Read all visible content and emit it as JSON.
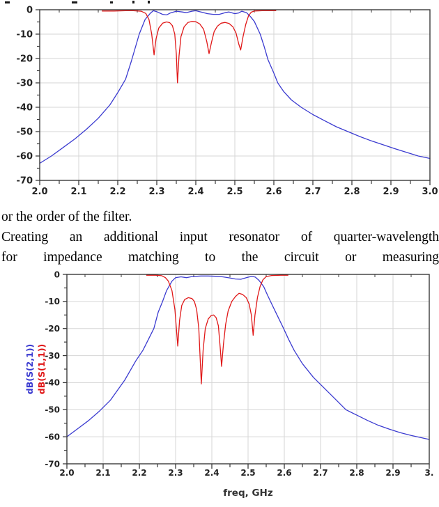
{
  "page": {
    "text_lines": [
      "or the order of the filter.",
      "Creating an additional input resonator of quarter-wavelength",
      "for impedance matching to the circuit or measuring"
    ]
  },
  "style": {
    "grid_color": "#d6d6d6",
    "border_color": "#3a3a3a",
    "tick_label_color": "#222222",
    "axis_title_color": "#333333",
    "s21_color": "#3b3bd0",
    "s11_color": "#e01818"
  },
  "chart_data": [
    {
      "type": "line",
      "title": "",
      "xlabel": "",
      "ylabel": "",
      "x_range": [
        2.0,
        3.0
      ],
      "y_range": [
        -70,
        0
      ],
      "x_major_step": 0.1,
      "grid": true,
      "legend_position": "none",
      "x_tick_labels": [
        "2.0",
        "2.1",
        "2.2",
        "2.3",
        "2.4",
        "2.5",
        "2.6",
        "2.7",
        "2.8",
        "2.9",
        "3.0"
      ],
      "y_tick_labels": [
        "0",
        "-10",
        "-20",
        "-30",
        "-40",
        "-50",
        "-60",
        "-70"
      ],
      "series": [
        {
          "name": "dB(S(2,1))",
          "color": "#3b3bd0",
          "points": [
            [
              2.0,
              -63
            ],
            [
              2.03,
              -60
            ],
            [
              2.06,
              -56.5
            ],
            [
              2.09,
              -53
            ],
            [
              2.12,
              -49
            ],
            [
              2.15,
              -44.5
            ],
            [
              2.18,
              -39
            ],
            [
              2.2,
              -34
            ],
            [
              2.22,
              -28.5
            ],
            [
              2.235,
              -21
            ],
            [
              2.255,
              -10
            ],
            [
              2.27,
              -4
            ],
            [
              2.283,
              -1.5
            ],
            [
              2.291,
              -0.4
            ],
            [
              2.3,
              -0.8
            ],
            [
              2.315,
              -1.9
            ],
            [
              2.325,
              -2.1
            ],
            [
              2.335,
              -1.3
            ],
            [
              2.35,
              -0.6
            ],
            [
              2.365,
              -0.9
            ],
            [
              2.375,
              -1.2
            ],
            [
              2.39,
              -0.6
            ],
            [
              2.4,
              -0.4
            ],
            [
              2.415,
              -1.0
            ],
            [
              2.43,
              -1.6
            ],
            [
              2.445,
              -1.9
            ],
            [
              2.46,
              -1.9
            ],
            [
              2.475,
              -1.2
            ],
            [
              2.485,
              -0.9
            ],
            [
              2.5,
              -1.6
            ],
            [
              2.51,
              -1.3
            ],
            [
              2.518,
              -0.6
            ],
            [
              2.53,
              -1.2
            ],
            [
              2.54,
              -2.8
            ],
            [
              2.55,
              -4.8
            ],
            [
              2.565,
              -10
            ],
            [
              2.575,
              -15
            ],
            [
              2.585,
              -20.5
            ],
            [
              2.6,
              -26
            ],
            [
              2.61,
              -30
            ],
            [
              2.625,
              -33.5
            ],
            [
              2.645,
              -37
            ],
            [
              2.67,
              -40
            ],
            [
              2.7,
              -43
            ],
            [
              2.73,
              -45.5
            ],
            [
              2.76,
              -48
            ],
            [
              2.79,
              -50
            ],
            [
              2.82,
              -52
            ],
            [
              2.85,
              -53.8
            ],
            [
              2.88,
              -55.4
            ],
            [
              2.91,
              -57
            ],
            [
              2.94,
              -58.5
            ],
            [
              2.97,
              -60
            ],
            [
              3.0,
              -61
            ]
          ]
        },
        {
          "name": "dB(S(1,1))",
          "color": "#e01818",
          "points": [
            [
              2.16,
              -0.5
            ],
            [
              2.19,
              -0.5
            ],
            [
              2.22,
              -0.4
            ],
            [
              2.24,
              -0.4
            ],
            [
              2.26,
              -0.6
            ],
            [
              2.272,
              -1.5
            ],
            [
              2.28,
              -4
            ],
            [
              2.287,
              -10
            ],
            [
              2.293,
              -18.5
            ],
            [
              2.298,
              -12
            ],
            [
              2.305,
              -7.5
            ],
            [
              2.315,
              -5.5
            ],
            [
              2.325,
              -5
            ],
            [
              2.333,
              -5.3
            ],
            [
              2.34,
              -6.5
            ],
            [
              2.346,
              -10
            ],
            [
              2.35,
              -18
            ],
            [
              2.353,
              -30
            ],
            [
              2.357,
              -19
            ],
            [
              2.362,
              -11
            ],
            [
              2.37,
              -7
            ],
            [
              2.38,
              -5.2
            ],
            [
              2.39,
              -4.8
            ],
            [
              2.4,
              -4.9
            ],
            [
              2.41,
              -5.8
            ],
            [
              2.42,
              -8
            ],
            [
              2.428,
              -13
            ],
            [
              2.434,
              -18
            ],
            [
              2.44,
              -13.5
            ],
            [
              2.447,
              -9
            ],
            [
              2.455,
              -6.8
            ],
            [
              2.465,
              -5.5
            ],
            [
              2.475,
              -5.2
            ],
            [
              2.485,
              -5.6
            ],
            [
              2.495,
              -7
            ],
            [
              2.503,
              -9.5
            ],
            [
              2.51,
              -14
            ],
            [
              2.515,
              -16.5
            ],
            [
              2.521,
              -11
            ],
            [
              2.528,
              -6
            ],
            [
              2.535,
              -2.5
            ],
            [
              2.542,
              -1
            ],
            [
              2.55,
              -0.5
            ],
            [
              2.57,
              -0.4
            ],
            [
              2.59,
              -0.4
            ],
            [
              2.605,
              -0.4
            ]
          ]
        }
      ]
    },
    {
      "type": "line",
      "title": "",
      "xlabel": "freq, GHz",
      "ylabel_rotated": [
        "dB(S(2,1))",
        "dB(S(1,1))"
      ],
      "x_range": [
        2.0,
        3.0
      ],
      "y_range": [
        -70,
        0
      ],
      "x_major_step": 0.1,
      "grid": true,
      "legend_position": "left-rotated",
      "x_tick_labels": [
        "2.0",
        "2.1",
        "2.2",
        "2.3",
        "2.4",
        "2.5",
        "2.6",
        "2.7",
        "2.8",
        "2.9",
        "3."
      ],
      "y_tick_labels": [
        "0",
        "-10",
        "-20",
        "-30",
        "-40",
        "-50",
        "-60",
        "-70"
      ],
      "series": [
        {
          "name": "dB(S(2,1))",
          "color": "#3b3bd0",
          "points": [
            [
              2.0,
              -60
            ],
            [
              2.03,
              -57
            ],
            [
              2.06,
              -54
            ],
            [
              2.09,
              -50.5
            ],
            [
              2.12,
              -46.5
            ],
            [
              2.16,
              -39
            ],
            [
              2.19,
              -32
            ],
            [
              2.21,
              -28
            ],
            [
              2.225,
              -24
            ],
            [
              2.24,
              -20
            ],
            [
              2.252,
              -14
            ],
            [
              2.264,
              -10
            ],
            [
              2.275,
              -6
            ],
            [
              2.29,
              -2.5
            ],
            [
              2.3,
              -1.2
            ],
            [
              2.315,
              -0.9
            ],
            [
              2.33,
              -1.2
            ],
            [
              2.345,
              -0.8
            ],
            [
              2.37,
              -0.6
            ],
            [
              2.39,
              -0.6
            ],
            [
              2.41,
              -0.7
            ],
            [
              2.43,
              -0.9
            ],
            [
              2.45,
              -1.3
            ],
            [
              2.465,
              -1.7
            ],
            [
              2.48,
              -1.8
            ],
            [
              2.495,
              -1.2
            ],
            [
              2.51,
              -0.7
            ],
            [
              2.52,
              -1.0
            ],
            [
              2.53,
              -2.2
            ],
            [
              2.543,
              -4.5
            ],
            [
              2.553,
              -7.5
            ],
            [
              2.562,
              -10
            ],
            [
              2.58,
              -15
            ],
            [
              2.598,
              -20
            ],
            [
              2.612,
              -24
            ],
            [
              2.627,
              -28
            ],
            [
              2.65,
              -33
            ],
            [
              2.68,
              -38
            ],
            [
              2.71,
              -42
            ],
            [
              2.74,
              -46
            ],
            [
              2.77,
              -50
            ],
            [
              2.8,
              -52
            ],
            [
              2.83,
              -54
            ],
            [
              2.86,
              -55.8
            ],
            [
              2.89,
              -57.2
            ],
            [
              2.92,
              -58.5
            ],
            [
              2.95,
              -59.5
            ],
            [
              3.0,
              -61
            ]
          ]
        },
        {
          "name": "dB(S(1,1))",
          "color": "#e01818",
          "points": [
            [
              2.22,
              -0.3
            ],
            [
              2.245,
              -0.3
            ],
            [
              2.262,
              -0.5
            ],
            [
              2.272,
              -1.2
            ],
            [
              2.28,
              -2.5
            ],
            [
              2.29,
              -6
            ],
            [
              2.298,
              -13
            ],
            [
              2.306,
              -26.5
            ],
            [
              2.311,
              -17
            ],
            [
              2.317,
              -11.5
            ],
            [
              2.325,
              -9.3
            ],
            [
              2.335,
              -8.6
            ],
            [
              2.345,
              -8.9
            ],
            [
              2.352,
              -10
            ],
            [
              2.358,
              -13
            ],
            [
              2.364,
              -20
            ],
            [
              2.371,
              -40.5
            ],
            [
              2.376,
              -28
            ],
            [
              2.382,
              -20
            ],
            [
              2.39,
              -16.5
            ],
            [
              2.398,
              -15.2
            ],
            [
              2.405,
              -15
            ],
            [
              2.412,
              -16
            ],
            [
              2.418,
              -19
            ],
            [
              2.423,
              -27
            ],
            [
              2.427,
              -34
            ],
            [
              2.432,
              -26
            ],
            [
              2.438,
              -18.5
            ],
            [
              2.445,
              -13.5
            ],
            [
              2.455,
              -10
            ],
            [
              2.465,
              -8.2
            ],
            [
              2.475,
              -7.0
            ],
            [
              2.485,
              -7.4
            ],
            [
              2.495,
              -8.6
            ],
            [
              2.503,
              -11
            ],
            [
              2.509,
              -15
            ],
            [
              2.514,
              -22.5
            ],
            [
              2.519,
              -15
            ],
            [
              2.526,
              -8.5
            ],
            [
              2.533,
              -4.5
            ],
            [
              2.541,
              -2
            ],
            [
              2.55,
              -0.8
            ],
            [
              2.565,
              -0.4
            ],
            [
              2.59,
              -0.3
            ],
            [
              2.61,
              -0.3
            ]
          ]
        }
      ]
    }
  ]
}
